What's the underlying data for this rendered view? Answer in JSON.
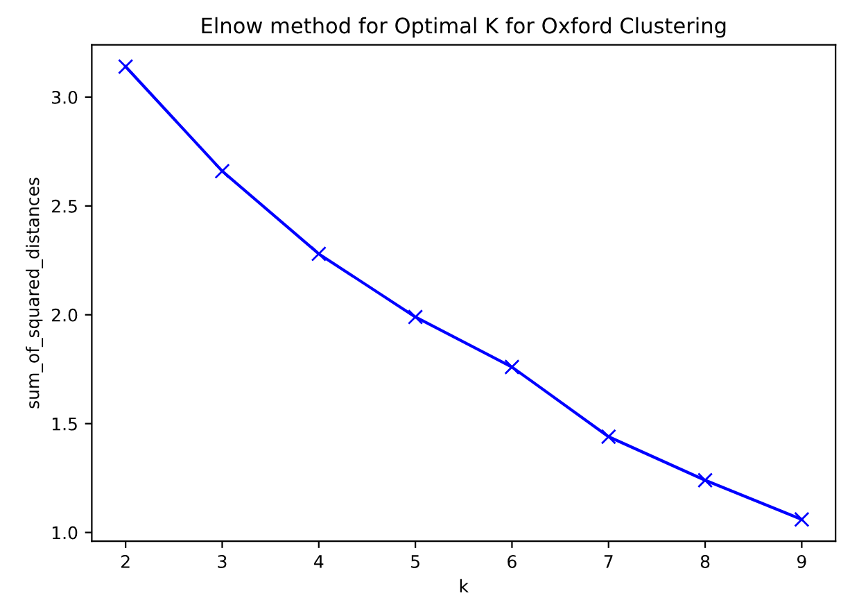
{
  "chart_data": {
    "type": "line",
    "title": "Elnow method for Optimal K for Oxford Clustering",
    "xlabel": "k",
    "ylabel": "sum_of_squared_distances",
    "x": [
      2,
      3,
      4,
      5,
      6,
      7,
      8,
      9
    ],
    "series": [
      {
        "color": "#0000ff",
        "values": [
          3.14,
          2.66,
          2.28,
          1.99,
          1.76,
          1.44,
          1.24,
          1.06
        ]
      }
    ],
    "xlim": [
      1.65,
      9.35
    ],
    "xticks": [
      2,
      3,
      4,
      5,
      6,
      7,
      8,
      9
    ],
    "ylim": [
      0.96,
      3.24
    ],
    "yticks": [
      {
        "value": 1.0,
        "label": "1.0"
      },
      {
        "value": 1.5,
        "label": "1.5"
      },
      {
        "value": 2.0,
        "label": "2.0"
      },
      {
        "value": 2.5,
        "label": "2.5"
      },
      {
        "value": 3.0,
        "label": "3.0"
      }
    ],
    "marker": "cross",
    "line_style": "solid"
  }
}
